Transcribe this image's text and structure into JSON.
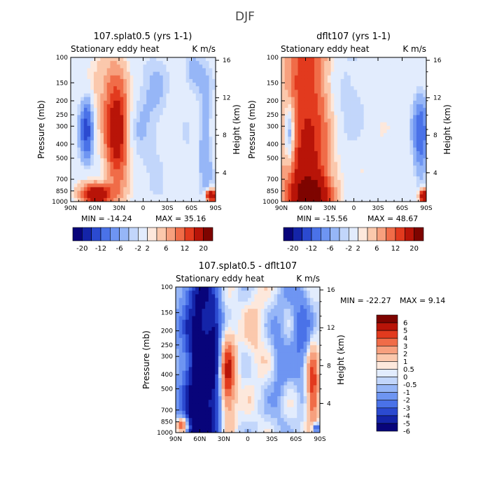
{
  "figure_title": "DJF",
  "chart_data": [
    {
      "type": "heatmap",
      "title": "107.splat0.5 (yrs 1-1)",
      "subtitle_left": "Stationary eddy heat",
      "subtitle_right": "K m/s",
      "ylabel": "Pressure (mb)",
      "ylabel_right": "Height (km)",
      "x_ticks": [
        "90N",
        "60N",
        "30N",
        "0",
        "30S",
        "60S",
        "90S"
      ],
      "y_ticks": [
        "100",
        "150",
        "200",
        "250",
        "300",
        "400",
        "500",
        "700",
        "850",
        "1000"
      ],
      "height_ticks": [
        "16",
        "12",
        "8",
        "4"
      ],
      "min_label": "MIN = -14.24",
      "max_label": "MAX = 35.16",
      "min": -14.24,
      "max": 35.16,
      "colorbar_levels": [
        "-20",
        "-12",
        "-6",
        "-2",
        "2",
        "6",
        "12",
        "20"
      ]
    },
    {
      "type": "heatmap",
      "title": "dflt107 (yrs 1-1)",
      "subtitle_left": "Stationary eddy heat",
      "subtitle_right": "K m/s",
      "ylabel": "Pressure (mb)",
      "ylabel_right": "Height (km)",
      "x_ticks": [
        "90N",
        "60N",
        "30N",
        "0",
        "30S",
        "60S",
        "90S"
      ],
      "y_ticks": [
        "100",
        "150",
        "200",
        "250",
        "300",
        "400",
        "500",
        "700",
        "850",
        "1000"
      ],
      "height_ticks": [
        "16",
        "12",
        "8",
        "4"
      ],
      "min_label": "MIN = -15.56",
      "max_label": "MAX = 48.67",
      "min": -15.56,
      "max": 48.67,
      "colorbar_levels": [
        "-20",
        "-12",
        "-6",
        "-2",
        "2",
        "6",
        "12",
        "20"
      ]
    },
    {
      "type": "heatmap",
      "title": "107.splat0.5 - dflt107",
      "subtitle_left": "Stationary eddy heat",
      "subtitle_right": "K m/s",
      "ylabel": "Pressure (mb)",
      "ylabel_right": "Height (km)",
      "x_ticks": [
        "90N",
        "60N",
        "30N",
        "0",
        "30S",
        "60S",
        "90S"
      ],
      "y_ticks": [
        "100",
        "150",
        "200",
        "250",
        "300",
        "400",
        "500",
        "700",
        "850",
        "1000"
      ],
      "height_ticks": [
        "16",
        "12",
        "8",
        "4"
      ],
      "min_label": "MIN = -22.27",
      "max_label": "MAX =   9.14",
      "min": -22.27,
      "max": 9.14,
      "colorbar_levels": [
        "6",
        "5",
        "4",
        "3",
        "2",
        "1",
        "0.5",
        "0",
        "-0.5",
        "-1",
        "-2",
        "-3",
        "-4",
        "-5",
        "-6"
      ]
    }
  ],
  "palette_blue_red": [
    "#08047a",
    "#1424a8",
    "#2b4ad0",
    "#4a72e8",
    "#6e95f2",
    "#96b6f7",
    "#c2d6fb",
    "#e2ecfd",
    "#fde8dc",
    "#fbc8ac",
    "#f7a07e",
    "#f06c48",
    "#e23a1e",
    "#b81408",
    "#7e0400"
  ],
  "palette_diff": [
    "#7e0400",
    "#b81408",
    "#e23a1e",
    "#f06c48",
    "#f7a07e",
    "#fbc8ac",
    "#fde8dc",
    "#e2ecfd",
    "#c2d6fb",
    "#96b6f7",
    "#6e95f2",
    "#4a72e8",
    "#2b4ad0",
    "#1424a8",
    "#08047a"
  ]
}
